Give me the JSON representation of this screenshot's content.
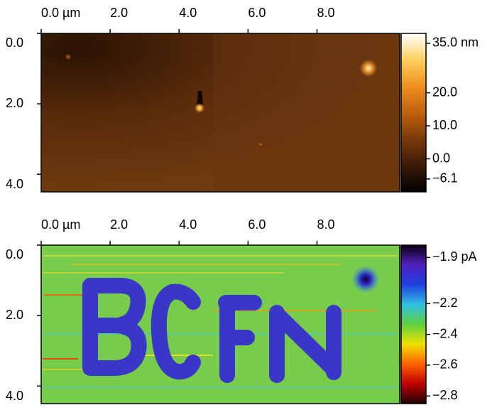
{
  "chart_data": [
    {
      "type": "image",
      "xlim": [
        0,
        10.4
      ],
      "xticks": [
        {
          "value": 0,
          "label": "0.0 µm"
        },
        {
          "value": 2,
          "label": "2.0"
        },
        {
          "value": 4,
          "label": "4.0"
        },
        {
          "value": 6,
          "label": "6.0"
        },
        {
          "value": 8,
          "label": "8.0"
        }
      ],
      "ylim": [
        0,
        4.5
      ],
      "yticks": [
        {
          "value": 0,
          "label": "0.0"
        },
        {
          "value": 2,
          "label": "2.0"
        },
        {
          "value": 4,
          "label": "4.0"
        }
      ],
      "colorbar": {
        "lim": [
          -10,
          38
        ],
        "ticks": [
          {
            "value": 35,
            "label": "35.0 nm"
          },
          {
            "value": 20,
            "label": "20.0"
          },
          {
            "value": 10,
            "label": "10.0"
          },
          {
            "value": 0,
            "label": "0.0"
          },
          {
            "value": -6.1,
            "label": "−6.1"
          }
        ],
        "colors": [
          "#000000",
          "#3a1a05",
          "#7a3a0a",
          "#c0620e",
          "#f09020",
          "#ffd060",
          "#ffffff"
        ]
      }
    },
    {
      "type": "image",
      "xlim": [
        0,
        10.4
      ],
      "xticks": [
        {
          "value": 0,
          "label": "0.0 µm"
        },
        {
          "value": 2,
          "label": "2.0"
        },
        {
          "value": 4,
          "label": "4.0"
        },
        {
          "value": 6,
          "label": "6.0"
        },
        {
          "value": 8,
          "label": "8.0"
        }
      ],
      "ylim": [
        0,
        4.5
      ],
      "yticks": [
        {
          "value": 0,
          "label": "0.0"
        },
        {
          "value": 2,
          "label": "2.0"
        },
        {
          "value": 4,
          "label": "4.0"
        }
      ],
      "colorbar": {
        "lim": [
          -2.85,
          -1.82
        ],
        "ticks": [
          {
            "value": -1.9,
            "label": "−1.9 pA"
          },
          {
            "value": -2.2,
            "label": "−2.2"
          },
          {
            "value": -2.4,
            "label": "−2.4"
          },
          {
            "value": -2.6,
            "label": "−2.6"
          },
          {
            "value": -2.8,
            "label": "−2.8"
          }
        ],
        "colors": [
          "#200000",
          "#c00000",
          "#ff6000",
          "#f0e000",
          "#60d040",
          "#30c0e0",
          "#2040e0",
          "#5020c0",
          "#100010"
        ]
      }
    }
  ]
}
